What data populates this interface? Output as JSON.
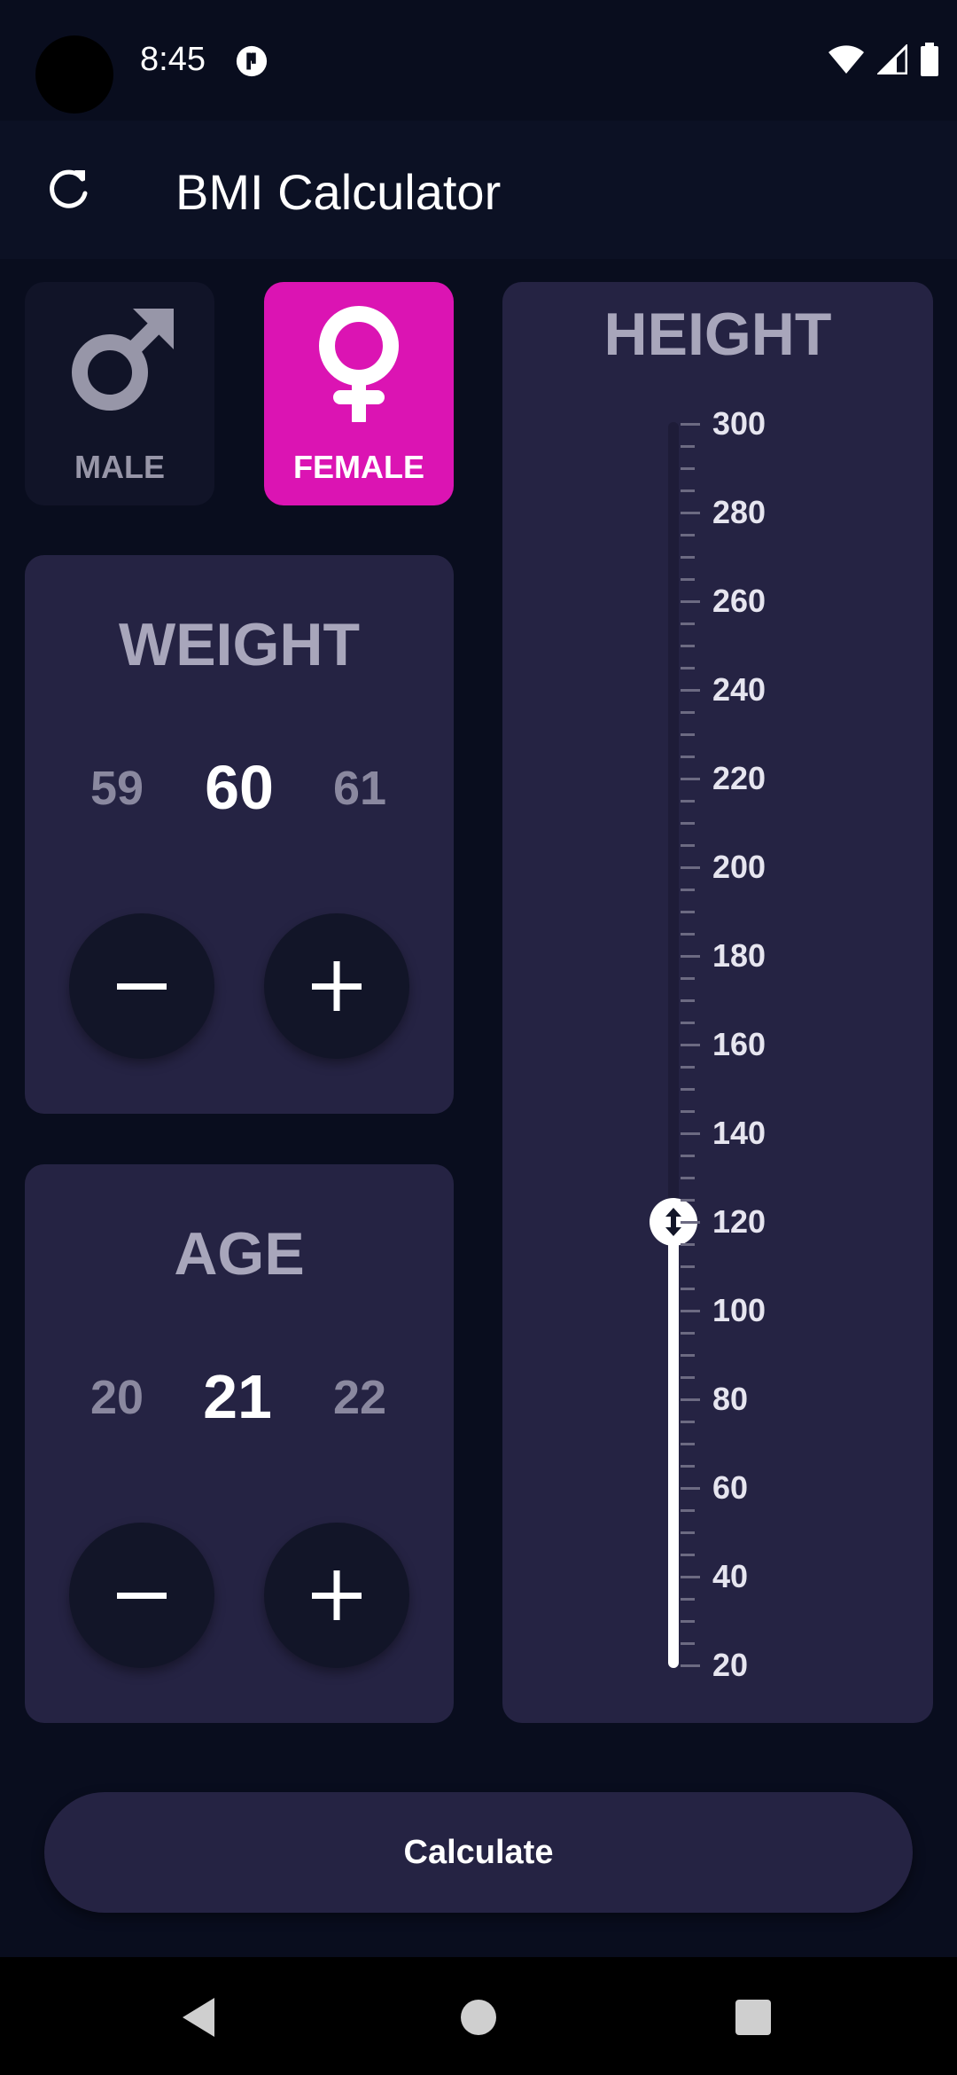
{
  "status_bar": {
    "time": "8:45"
  },
  "app_bar": {
    "title": "BMI Calculator"
  },
  "gender": {
    "male_label": "MALE",
    "female_label": "FEMALE",
    "selected": "FEMALE"
  },
  "weight": {
    "title": "WEIGHT",
    "prev": "59",
    "current": "60",
    "next": "61"
  },
  "age": {
    "title": "AGE",
    "prev": "20",
    "current": "21",
    "next": "22"
  },
  "height": {
    "title": "HEIGHT",
    "ticks": [
      "300",
      "280",
      "260",
      "240",
      "220",
      "200",
      "180",
      "160",
      "140",
      "120",
      "100",
      "80",
      "60",
      "40",
      "20"
    ],
    "min": 20,
    "max": 300,
    "value": 120
  },
  "calculate_label": "Calculate",
  "colors": {
    "background": "#090d1e",
    "card": "#252343",
    "accent": "#db14b3"
  },
  "icons": {
    "refresh": "refresh-icon",
    "male": "male-symbol-icon",
    "female": "female-symbol-icon",
    "minus": "minus-icon",
    "plus": "plus-icon",
    "height_thumb": "vertical-arrows-icon"
  }
}
